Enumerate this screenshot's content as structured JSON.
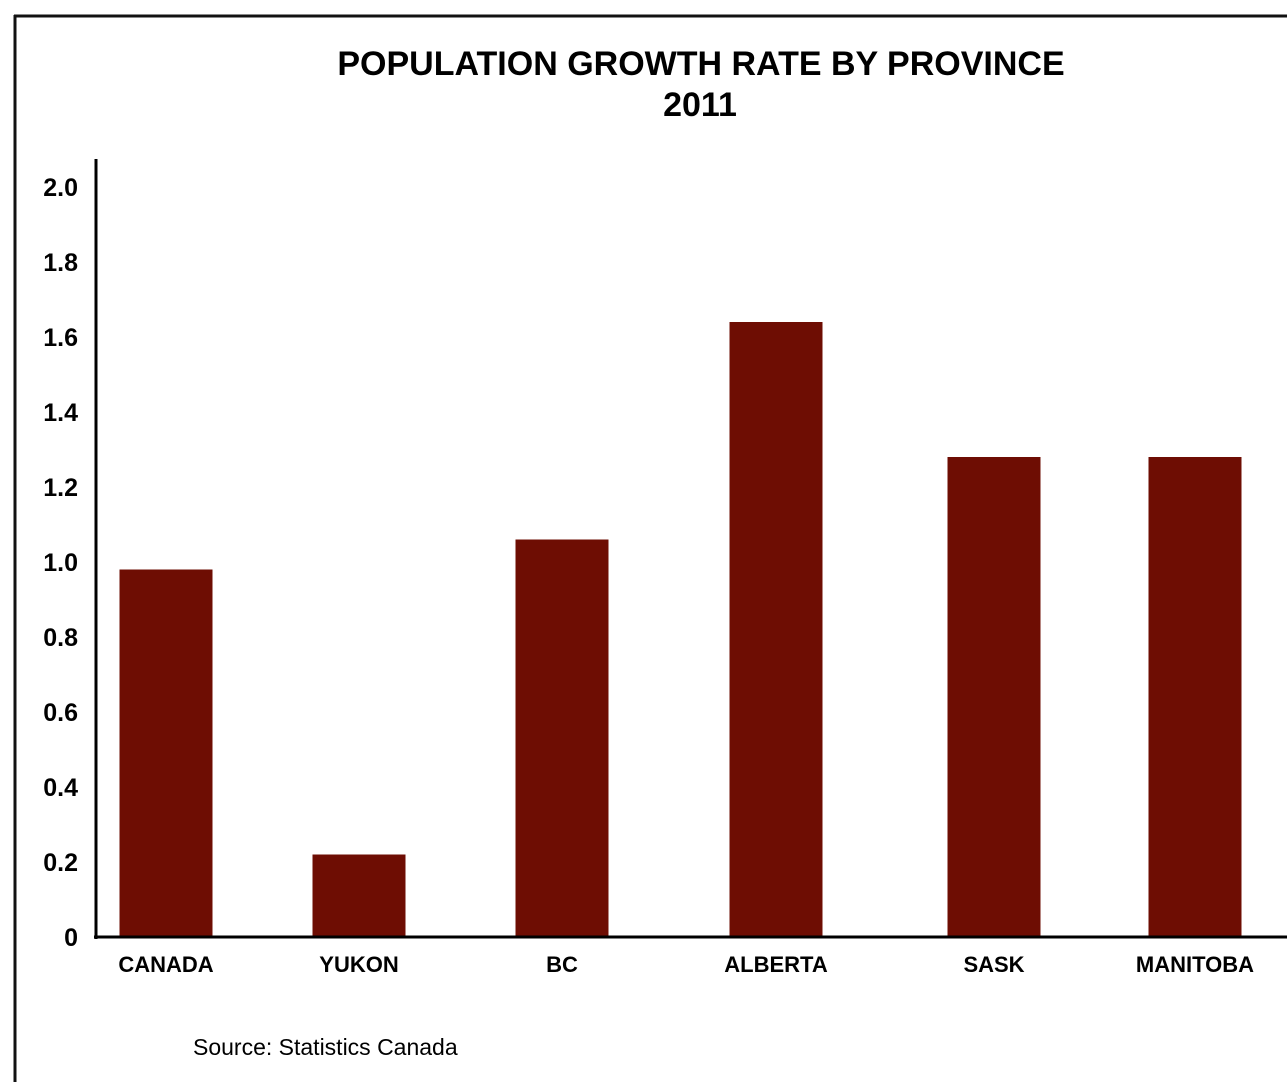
{
  "chart_data": {
    "type": "bar",
    "title": "POPULATION GROWTH RATE BY PROVINCE",
    "subtitle": "2011",
    "xlabel": "",
    "ylabel": "",
    "ylim": [
      0,
      2.0
    ],
    "yticks": [
      "0",
      "0.2",
      "0.4",
      "0.6",
      "0.8",
      "1.0",
      "1.2",
      "1.4",
      "1.6",
      "1.8",
      "2.0"
    ],
    "categories": [
      "CANADA",
      "YUKON",
      "BC",
      "ALBERTA",
      "SASK",
      "MANITOBA"
    ],
    "values": [
      0.98,
      0.22,
      1.06,
      1.64,
      1.28,
      1.28
    ],
    "bar_color": "#6e0d03",
    "grid": false,
    "legend": "none",
    "source": "Source: Statistics Canada"
  }
}
